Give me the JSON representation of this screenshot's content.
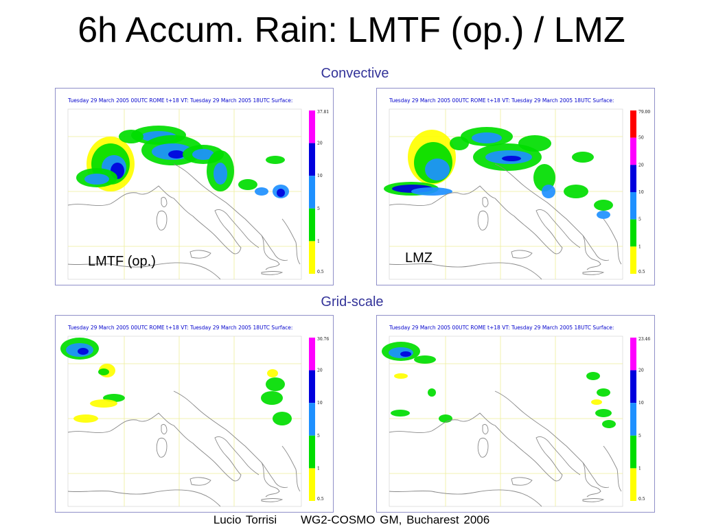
{
  "slide": {
    "title": "6h Accum. Rain: LMTF (op.) / LMZ",
    "footer_author": "Lucio Torrisi",
    "footer_event": "WG2-COSMO GM, Bucharest 2006"
  },
  "sections": {
    "top_label": "Convective",
    "bottom_label": "Grid-scale"
  },
  "panels": [
    {
      "header": "Tuesday 29 March 2005 00UTC ROME   t+18 VT: Tuesday 29 March 2005 18UTC Surface:",
      "caption": "LMTF (op.)",
      "colorbar_max": "37.81",
      "colorbar_labels": [
        "20",
        "10",
        "5",
        "1",
        "0.5"
      ],
      "colorbar_colors": [
        "#ff00ff",
        "#0000dd",
        "#1e90ff",
        "#00dd00",
        "#ffff00"
      ]
    },
    {
      "header": "Tuesday 29 March 2005 00UTC ROME   t+18 VT: Tuesday 29 March 2005 18UTC Surface:",
      "caption": "LMZ",
      "colorbar_max": "79.00",
      "colorbar_labels": [
        "50",
        "20",
        "10",
        "5",
        "1",
        "0.5"
      ],
      "colorbar_colors": [
        "#ff0000",
        "#ff00ff",
        "#0000dd",
        "#1e90ff",
        "#00dd00",
        "#ffff00"
      ]
    },
    {
      "header": "Tuesday 29 March 2005 00UTC ROME   t+18 VT: Tuesday 29 March 2005 18UTC Surface:",
      "caption": "",
      "colorbar_max": "30.76",
      "colorbar_labels": [
        "20",
        "10",
        "5",
        "1",
        "0.5"
      ],
      "colorbar_colors": [
        "#ff00ff",
        "#0000dd",
        "#1e90ff",
        "#00dd00",
        "#ffff00"
      ]
    },
    {
      "header": "Tuesday 29 March 2005 00UTC ROME   t+18 VT: Tuesday 29 March 2005 18UTC Surface:",
      "caption": "",
      "colorbar_max": "23.46",
      "colorbar_labels": [
        "20",
        "10",
        "5",
        "1",
        "0.5"
      ],
      "colorbar_colors": [
        "#ff00ff",
        "#0000dd",
        "#1e90ff",
        "#00dd00",
        "#ffff00"
      ]
    }
  ],
  "map_colors": {
    "coast": "#888888",
    "grid": "#eeee99",
    "panel_border": "#8e8ec8"
  }
}
